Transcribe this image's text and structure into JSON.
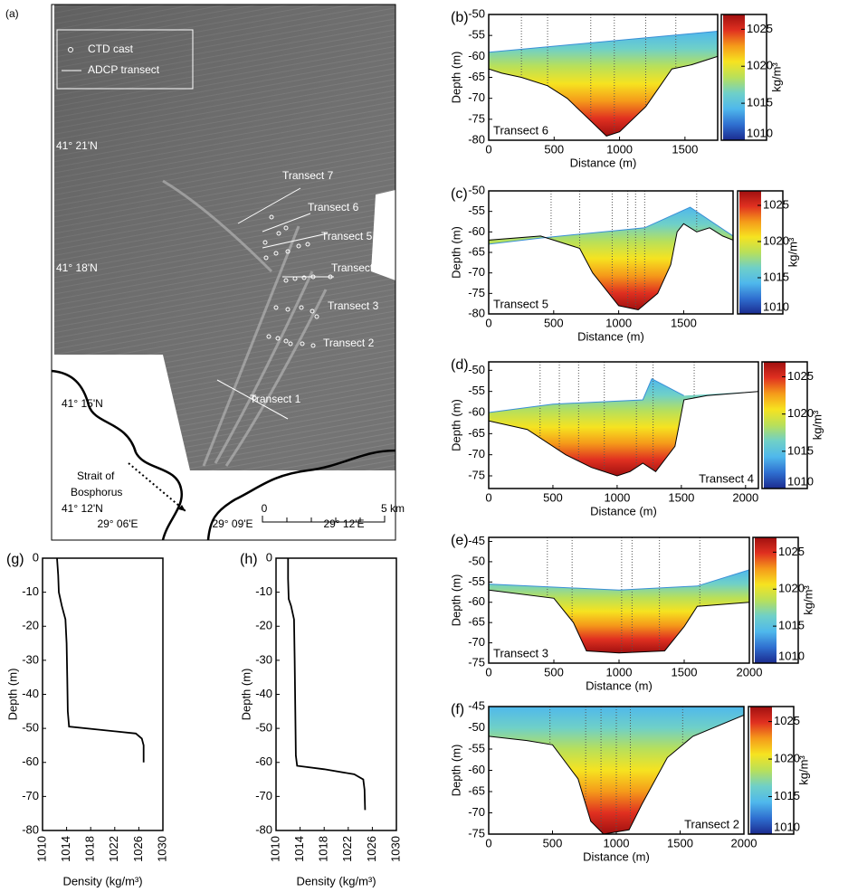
{
  "map": {
    "label": "(a)",
    "legend": [
      "CTD cast",
      "ADCP transect"
    ],
    "latitudes": [
      "41° 21'N",
      "41° 18'N",
      "41° 15'N",
      "41° 12'N"
    ],
    "longitudes": [
      "29° 06'E",
      "29° 09'E",
      "29° 12'E"
    ],
    "transects": [
      "Transect 1",
      "Transect 2",
      "Transect 3",
      "Transect 4",
      "Transect 5",
      "Transect 6",
      "Transect 7"
    ],
    "annotation": [
      "Strait of",
      "Bosphorus"
    ],
    "scale_labels": [
      "0",
      "5 km"
    ]
  },
  "colormap": [
    "#1b2b8f",
    "#2f6fd0",
    "#4fb8ec",
    "#6fd0c8",
    "#b8e05a",
    "#f6e320",
    "#f59a1a",
    "#e03020",
    "#a01010"
  ],
  "chart_data": [
    {
      "type": "section",
      "label": "(b)",
      "name": "Transect 6",
      "xlabel": "Distance (m)",
      "ylabel": "Depth (m)",
      "xlim": [
        0,
        1750
      ],
      "xticks": [
        0,
        500,
        1000,
        1500
      ],
      "ylim": [
        -80,
        -50
      ],
      "yticks": [
        -80,
        -75,
        -70,
        -65,
        -60,
        -55,
        -50
      ],
      "surface": {
        "x": [
          0,
          1750
        ],
        "y": [
          -59,
          -54
        ]
      },
      "bottom": {
        "x": [
          0,
          100,
          250,
          450,
          600,
          800,
          900,
          1000,
          1200,
          1400,
          1550,
          1700,
          1750
        ],
        "y": [
          -63,
          -64,
          -65,
          -67,
          -70,
          -76,
          -79,
          -78,
          -72,
          -63,
          -62,
          -60.5,
          -60
        ]
      },
      "stations": [
        250,
        450,
        780,
        960,
        1200,
        1430
      ],
      "colorbar": {
        "label": "kg/m³",
        "lim": [
          1010,
          1027
        ],
        "ticks": [
          1010,
          1015,
          1020,
          1025
        ]
      }
    },
    {
      "type": "section",
      "label": "(c)",
      "name": "Transect 5",
      "xlabel": "Distance (m)",
      "ylabel": "Depth (m)",
      "xlim": [
        0,
        1880
      ],
      "xticks": [
        0,
        500,
        1000,
        1500
      ],
      "ylim": [
        -80,
        -50
      ],
      "yticks": [
        -80,
        -75,
        -70,
        -65,
        -60,
        -55,
        -50
      ],
      "surface": {
        "x": [
          0,
          400,
          1200,
          1550,
          1880
        ],
        "y": [
          -63,
          -61.5,
          -59,
          -54,
          -61
        ]
      },
      "bottom": {
        "x": [
          0,
          400,
          700,
          800,
          1000,
          1150,
          1300,
          1400,
          1450,
          1500,
          1600,
          1700,
          1800,
          1880
        ],
        "y": [
          -62,
          -61,
          -64,
          -70,
          -78,
          -79,
          -75,
          -68,
          -60,
          -58,
          -60,
          -59,
          -61,
          -62
        ]
      },
      "stations": [
        480,
        700,
        950,
        1070,
        1130,
        1200,
        1600
      ],
      "colorbar": {
        "label": "kg/m³",
        "lim": [
          1010,
          1027
        ],
        "ticks": [
          1010,
          1015,
          1020,
          1025
        ]
      }
    },
    {
      "type": "section",
      "label": "(d)",
      "name": "Transect 4",
      "xlabel": "Distance (m)",
      "ylabel": "Depth (m)",
      "xlim": [
        0,
        2100
      ],
      "xticks": [
        0,
        500,
        1000,
        1500,
        2000
      ],
      "ylim": [
        -78,
        -48
      ],
      "yticks": [
        -75,
        -70,
        -65,
        -60,
        -55,
        -50
      ],
      "surface": {
        "x": [
          0,
          500,
          1200,
          1270,
          1520
        ],
        "y": [
          -60,
          -58,
          -57,
          -52,
          -56
        ]
      },
      "bottom": {
        "x": [
          0,
          300,
          600,
          800,
          1000,
          1100,
          1200,
          1300,
          1450,
          1520,
          1700,
          2100
        ],
        "y": [
          -62,
          -64,
          -70,
          -73,
          -75,
          -74,
          -72,
          -74,
          -68,
          -57,
          -56,
          -55
        ]
      },
      "stations": [
        400,
        550,
        700,
        900,
        1150,
        1280,
        1600
      ],
      "colorbar": {
        "label": "kg/m³",
        "lim": [
          1010,
          1027
        ],
        "ticks": [
          1010,
          1015,
          1020,
          1025
        ]
      }
    },
    {
      "type": "section",
      "label": "(e)",
      "name": "Transect 3",
      "xlabel": "Distance (m)",
      "ylabel": "Depth (m)",
      "xlim": [
        0,
        2000
      ],
      "xticks": [
        0,
        500,
        1000,
        1500,
        2000
      ],
      "ylim": [
        -75,
        -44
      ],
      "yticks": [
        -75,
        -70,
        -65,
        -60,
        -55,
        -50,
        -45
      ],
      "surface": {
        "x": [
          0,
          1000,
          1600,
          2000
        ],
        "y": [
          -55.5,
          -57,
          -56,
          -52
        ]
      },
      "bottom": {
        "x": [
          0,
          500,
          650,
          750,
          1000,
          1350,
          1500,
          1600,
          2000
        ],
        "y": [
          -57,
          -59,
          -65,
          -72,
          -72.5,
          -72,
          -66,
          -61,
          -60
        ]
      },
      "stations": [
        450,
        640,
        1020,
        1100,
        1310,
        1620
      ],
      "colorbar": {
        "label": "kg/m³",
        "lim": [
          1010,
          1027
        ],
        "ticks": [
          1010,
          1015,
          1020,
          1025
        ]
      }
    },
    {
      "type": "section",
      "label": "(f)",
      "name": "Transect 2",
      "xlabel": "Distance (m)",
      "ylabel": "Depth (m)",
      "xlim": [
        0,
        2000
      ],
      "xticks": [
        0,
        500,
        1000,
        1500,
        2000
      ],
      "ylim": [
        -75,
        -45
      ],
      "yticks": [
        -75,
        -70,
        -65,
        -60,
        -55,
        -50,
        -45
      ],
      "surface": {
        "x": [
          0,
          2000
        ],
        "y": [
          -45,
          -45
        ]
      },
      "bottom": {
        "x": [
          0,
          300,
          500,
          700,
          800,
          900,
          1100,
          1200,
          1400,
          1600,
          2000
        ],
        "y": [
          -52,
          -53,
          -54,
          -62,
          -72,
          -75,
          -74,
          -68,
          -57,
          -52,
          -47
        ]
      },
      "stations": [
        480,
        760,
        880,
        1000,
        1110,
        1520
      ],
      "colorbar": {
        "label": "kg/m³",
        "lim": [
          1010,
          1027
        ],
        "ticks": [
          1010,
          1015,
          1020,
          1025
        ]
      }
    },
    {
      "type": "line",
      "label": "(g)",
      "xlabel": "Density (kg/m³)",
      "ylabel": "Depth (m)",
      "color": "#000000",
      "xlim": [
        1010,
        1030
      ],
      "xticks": [
        1010,
        1014,
        1018,
        1022,
        1026,
        1030
      ],
      "ylim": [
        -80,
        0
      ],
      "yticks": [
        -80,
        -70,
        -60,
        -50,
        -40,
        -30,
        -20,
        -10,
        0
      ],
      "x": [
        1012.4,
        1012.6,
        1012.7,
        1013.2,
        1013.8,
        1014.0,
        1014.1,
        1014.2,
        1014.4,
        1020,
        1025.5,
        1026.5,
        1026.8,
        1026.8
      ],
      "y": [
        0,
        -5,
        -10,
        -14,
        -18,
        -25,
        -35,
        -45,
        -49.5,
        -50.5,
        -51.5,
        -53,
        -55,
        -60
      ]
    },
    {
      "type": "line",
      "label": "(h)",
      "xlabel": "Density (kg/m³)",
      "ylabel": "Depth (m)",
      "color": "#000000",
      "xlim": [
        1010,
        1030
      ],
      "xticks": [
        1010,
        1014,
        1018,
        1022,
        1026,
        1030
      ],
      "ylim": [
        -80,
        0
      ],
      "yticks": [
        -80,
        -70,
        -60,
        -50,
        -40,
        -30,
        -20,
        -10,
        0
      ],
      "x": [
        1012.0,
        1012.0,
        1012.1,
        1012.5,
        1013.0,
        1013.1,
        1013.2,
        1013.3,
        1013.5,
        1018,
        1023,
        1024.5,
        1024.7,
        1024.8
      ],
      "y": [
        0,
        -6,
        -12,
        -14,
        -18,
        -30,
        -45,
        -58,
        -61,
        -62,
        -63.5,
        -65,
        -68,
        -74
      ]
    }
  ]
}
